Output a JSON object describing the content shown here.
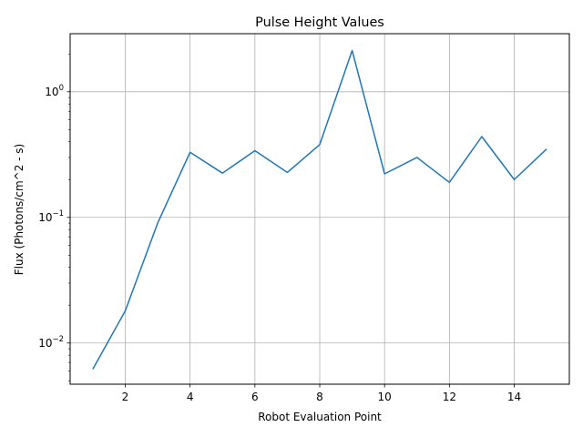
{
  "chart_data": {
    "type": "line",
    "title": "Pulse Height Values",
    "xlabel": "Robot Evaluation Point",
    "ylabel": "Flux (Photons/cm^2 - s)",
    "yscale": "log",
    "xlim": [
      0.3,
      15.7
    ],
    "ylim": [
      0.0047,
      2.9
    ],
    "xticks": [
      2,
      4,
      6,
      8,
      10,
      12,
      14
    ],
    "xtick_labels": [
      "2",
      "4",
      "6",
      "8",
      "10",
      "12",
      "14"
    ],
    "yticks": [
      0.01,
      0.1,
      1
    ],
    "ytick_labels": [
      {
        "base": "10",
        "exp": "−2"
      },
      {
        "base": "10",
        "exp": "−1"
      },
      {
        "base": "10",
        "exp": "0"
      }
    ],
    "grid": true,
    "line_color": "#1f77b4",
    "series": [
      {
        "x": [
          1,
          2,
          3,
          4,
          5,
          6,
          7,
          8,
          9,
          10,
          11,
          12,
          13,
          14,
          15
        ],
        "values": [
          0.0062,
          0.018,
          0.09,
          0.33,
          0.225,
          0.34,
          0.228,
          0.38,
          2.13,
          0.222,
          0.3,
          0.19,
          0.44,
          0.2,
          0.35
        ]
      }
    ]
  }
}
